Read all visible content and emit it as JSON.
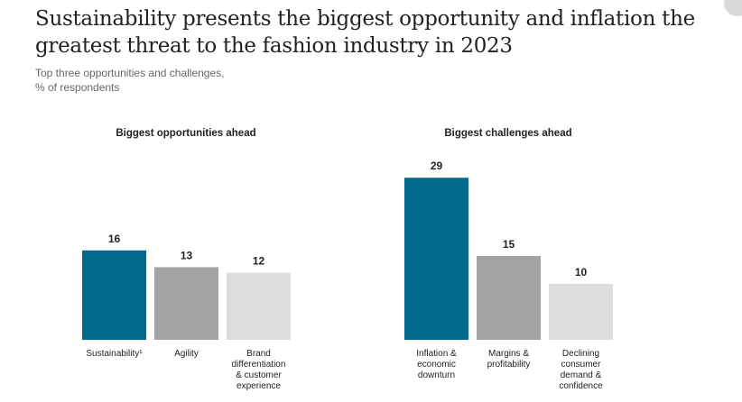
{
  "title_line1": "Sustainability presents the biggest opportunity and inflation the",
  "title_line2": "greatest threat to the fashion industry in 2023",
  "subtitle_line1": "Top three opportunities and challenges,",
  "subtitle_line2": "% of respondents",
  "colors": {
    "accent": "#006a8e",
    "mid": "#a3a3a3",
    "light": "#dcdcdc",
    "text": "#222222"
  },
  "chart_data": [
    {
      "type": "bar",
      "title": "Biggest opportunities ahead",
      "categories": [
        [
          "Sustainability¹"
        ],
        [
          "Agility"
        ],
        [
          "Brand",
          "differentiation",
          "& customer",
          "experience"
        ]
      ],
      "values": [
        16,
        13,
        12
      ],
      "bar_colors": [
        "#006a8e",
        "#a3a3a3",
        "#dcdcdc"
      ],
      "ylim": [
        0,
        29
      ]
    },
    {
      "type": "bar",
      "title": "Biggest challenges ahead",
      "categories": [
        [
          "Inflation &",
          "economic",
          "downturn"
        ],
        [
          "Margins &",
          "profitability"
        ],
        [
          "Declining",
          "consumer",
          "demand &",
          "confidence"
        ]
      ],
      "values": [
        29,
        15,
        10
      ],
      "bar_colors": [
        "#006a8e",
        "#a3a3a3",
        "#dcdcdc"
      ],
      "ylim": [
        0,
        29
      ]
    }
  ]
}
